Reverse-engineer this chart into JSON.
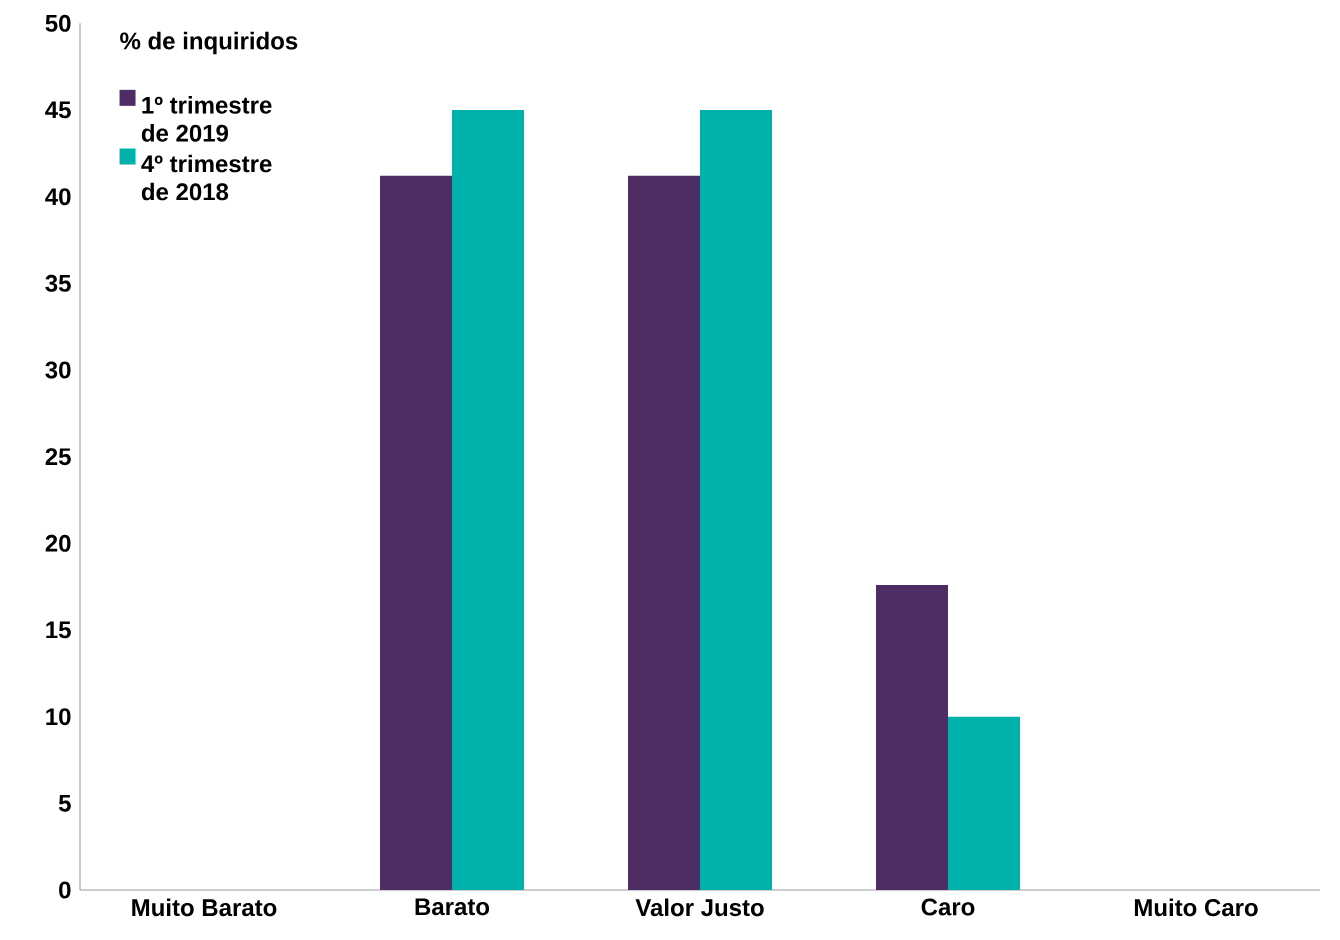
{
  "chart_data": {
    "type": "bar",
    "ylabel": "% de inquiridos",
    "categories": [
      "Muito Barato",
      "Barato",
      "Valor Justo",
      "Caro",
      "Muito Caro"
    ],
    "series": [
      {
        "name": "1º trimestre de 2019",
        "color": "#4e2d65",
        "values": [
          0,
          41.2,
          41.2,
          17.6,
          0
        ]
      },
      {
        "name": "4º trimestre de 2018",
        "color": "#00b2a9",
        "values": [
          0,
          45,
          45,
          10,
          0
        ]
      }
    ],
    "ylim": [
      0,
      50
    ],
    "yticks": [
      0,
      5,
      10,
      15,
      20,
      25,
      30,
      35,
      40,
      45,
      50
    ],
    "grid": false,
    "legend": "top left"
  }
}
